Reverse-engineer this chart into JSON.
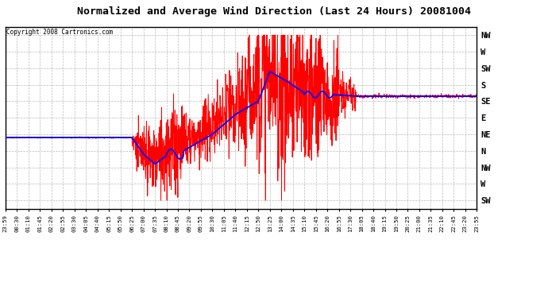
{
  "title": "Normalized and Average Wind Direction (Last 24 Hours) 20081004",
  "copyright": "Copyright 2008 Cartronics.com",
  "background_color": "#ffffff",
  "plot_bg_color": "#ffffff",
  "grid_color": "#aaaaaa",
  "ytick_labels": [
    "NW",
    "W",
    "SW",
    "S",
    "SE",
    "E",
    "NE",
    "N",
    "NW",
    "W",
    "SW"
  ],
  "ytick_values": [
    10,
    9,
    8,
    7,
    6,
    5,
    4,
    3,
    2,
    1,
    0
  ],
  "ylim": [
    -0.5,
    10.5
  ],
  "red_line_color": "#ff0000",
  "blue_line_color": "#0000ff",
  "xtick_labels": [
    "23:59",
    "00:30",
    "01:10",
    "01:45",
    "02:20",
    "02:55",
    "03:30",
    "04:05",
    "04:40",
    "05:15",
    "05:50",
    "06:25",
    "07:00",
    "07:35",
    "08:10",
    "08:45",
    "09:20",
    "09:55",
    "10:30",
    "11:05",
    "11:40",
    "12:15",
    "12:50",
    "13:25",
    "14:00",
    "14:35",
    "15:10",
    "15:45",
    "16:20",
    "16:55",
    "17:30",
    "18:05",
    "18:40",
    "19:15",
    "19:50",
    "20:25",
    "21:00",
    "21:35",
    "22:10",
    "22:45",
    "23:20",
    "23:55"
  ]
}
